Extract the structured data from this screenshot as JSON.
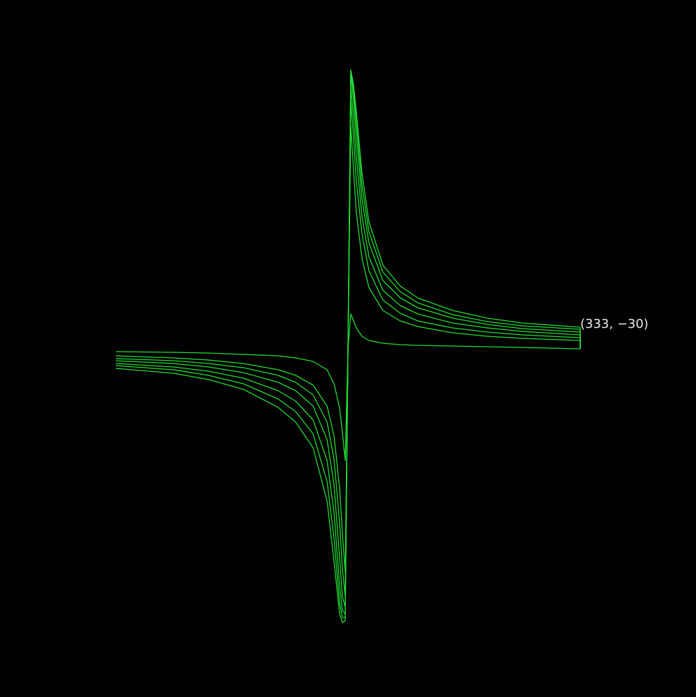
{
  "chart_data": {
    "type": "line",
    "title": "",
    "xlabel": "",
    "ylabel": "",
    "grid": false,
    "legend": "none",
    "xlim": [
      -333,
      333
    ],
    "ylim": [
      -400,
      400
    ],
    "line_color": "#22dd33",
    "background": "#000000",
    "annotation": {
      "text": "(333, −30)",
      "x": 333,
      "y": -30,
      "color": "#e8e8e8"
    },
    "series": [
      {
        "x": [
          -333,
          -250,
          -200,
          -150,
          -100,
          -75,
          -50,
          -30,
          -20,
          -12,
          -8,
          -4,
          0,
          4,
          8,
          12,
          20,
          30,
          50,
          75,
          100,
          150,
          200,
          250,
          333
        ],
        "y": [
          -4,
          -5,
          -6,
          -8,
          -10,
          -13,
          -18,
          -30,
          -50,
          -85,
          -120,
          -160,
          0,
          50,
          40,
          30,
          18,
          12,
          8,
          6,
          5,
          4,
          3,
          2,
          0
        ]
      },
      {
        "x": [
          -333,
          -250,
          -200,
          -150,
          -100,
          -75,
          -50,
          -30,
          -20,
          -12,
          -8,
          -4,
          0,
          4,
          8,
          12,
          20,
          30,
          50,
          75,
          100,
          150,
          200,
          250,
          333
        ],
        "y": [
          -10,
          -13,
          -16,
          -21,
          -30,
          -38,
          -52,
          -82,
          -125,
          -200,
          -265,
          -320,
          0,
          320,
          255,
          195,
          130,
          88,
          55,
          40,
          32,
          23,
          18,
          15,
          12
        ]
      },
      {
        "x": [
          -333,
          -250,
          -200,
          -150,
          -100,
          -75,
          -50,
          -30,
          -20,
          -12,
          -8,
          -4,
          0,
          4,
          8,
          12,
          20,
          30,
          50,
          75,
          100,
          150,
          200,
          250,
          333
        ],
        "y": [
          -14,
          -17,
          -21,
          -27,
          -38,
          -48,
          -66,
          -105,
          -158,
          -250,
          -315,
          -355,
          0,
          355,
          300,
          240,
          165,
          112,
          70,
          51,
          40,
          30,
          24,
          20,
          16
        ]
      },
      {
        "x": [
          -333,
          -250,
          -200,
          -150,
          -100,
          -75,
          -50,
          -30,
          -20,
          -12,
          -8,
          -4,
          0,
          4,
          8,
          12,
          20,
          30,
          50,
          75,
          100,
          150,
          200,
          250,
          333
        ],
        "y": [
          -17,
          -21,
          -26,
          -34,
          -48,
          -60,
          -82,
          -130,
          -195,
          -300,
          -355,
          -370,
          0,
          375,
          330,
          275,
          190,
          132,
          84,
          62,
          50,
          37,
          30,
          25,
          20
        ]
      },
      {
        "x": [
          -333,
          -250,
          -200,
          -150,
          -100,
          -75,
          -50,
          -30,
          -20,
          -12,
          -8,
          -4,
          0,
          4,
          8,
          12,
          20,
          30,
          50,
          75,
          100,
          150,
          200,
          250,
          333
        ],
        "y": [
          -21,
          -26,
          -32,
          -42,
          -60,
          -75,
          -102,
          -160,
          -235,
          -340,
          -375,
          -380,
          0,
          392,
          355,
          305,
          215,
          152,
          98,
          73,
          59,
          44,
          35,
          29,
          24
        ]
      },
      {
        "x": [
          -333,
          -250,
          -200,
          -150,
          -100,
          -75,
          -50,
          -30,
          -20,
          -12,
          -8,
          -4,
          0,
          4,
          8,
          12,
          20,
          30,
          50,
          75,
          100,
          150,
          200,
          250,
          333
        ],
        "y": [
          -24,
          -30,
          -38,
          -50,
          -72,
          -90,
          -122,
          -190,
          -272,
          -365,
          -385,
          -385,
          0,
          398,
          370,
          325,
          235,
          168,
          110,
          82,
          66,
          49,
          39,
          33,
          28
        ]
      },
      {
        "x": [
          -333,
          -250,
          -200,
          -150,
          -100,
          -75,
          -50,
          -30,
          -20,
          -12,
          -8,
          -4,
          0,
          4,
          8,
          12,
          20,
          30,
          50,
          75,
          100,
          150,
          200,
          250,
          333
        ],
        "y": [
          -28,
          -35,
          -44,
          -58,
          -84,
          -105,
          -142,
          -218,
          -305,
          -380,
          -392,
          -390,
          0,
          400,
          378,
          340,
          252,
          182,
          120,
          90,
          73,
          55,
          44,
          37,
          31
        ]
      }
    ]
  }
}
